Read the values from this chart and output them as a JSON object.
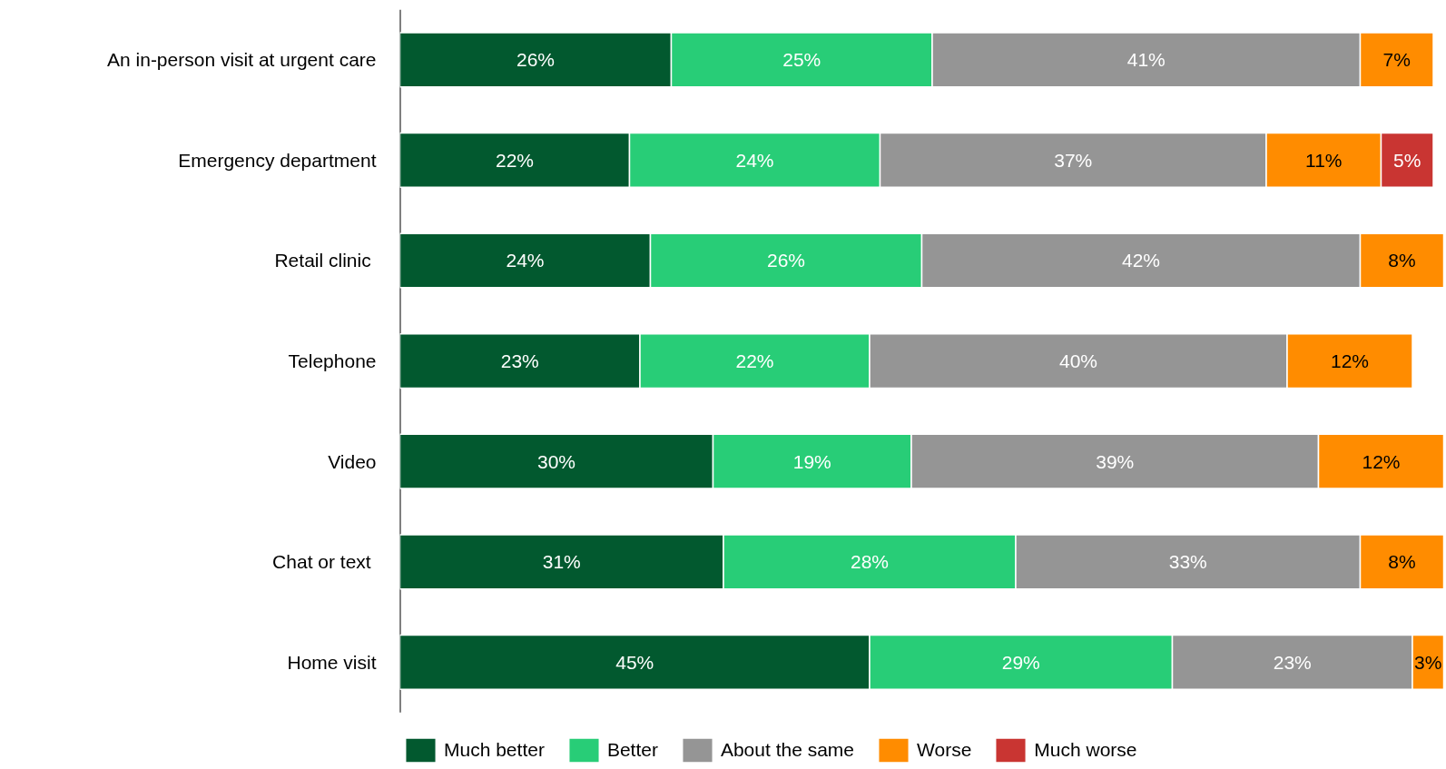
{
  "chart_data": {
    "type": "bar",
    "orientation": "horizontal",
    "stacked": true,
    "categories": [
      "An in-person visit at urgent care",
      "Emergency department",
      "Retail clinic ",
      "Telephone",
      "Video",
      "Chat or text ",
      "Home visit"
    ],
    "xlim": [
      0,
      100
    ],
    "tick_labels": "y",
    "grid": false,
    "legend": "bottom",
    "series": [
      {
        "name": "Much better",
        "color": "#02592f",
        "values": [
          26,
          22,
          24,
          23,
          30,
          31,
          45
        ],
        "value_labels": [
          "26%",
          "22%",
          "24%",
          "23%",
          "30%",
          "31%",
          "45%"
        ]
      },
      {
        "name": "Better",
        "color": "#28cd77",
        "values": [
          25,
          24,
          26,
          22,
          19,
          28,
          29
        ],
        "value_labels": [
          "25%",
          "24%",
          "26%",
          "22%",
          "19%",
          "28%",
          "29%"
        ]
      },
      {
        "name": "About the same",
        "color": "#959595",
        "values": [
          41,
          37,
          42,
          40,
          39,
          33,
          23
        ],
        "value_labels": [
          "41%",
          "37%",
          "42%",
          "40%",
          "39%",
          "33%",
          "23%"
        ]
      },
      {
        "name": "Worse",
        "color": "#ff8c00",
        "values": [
          7,
          11,
          8,
          12,
          12,
          8,
          3
        ],
        "value_labels": [
          "7%",
          "11%",
          "8%",
          "12%",
          "12%",
          "8%",
          "3%"
        ]
      },
      {
        "name": "Much worse",
        "color": "#c93532",
        "values": [
          null,
          5,
          null,
          null,
          null,
          null,
          null
        ],
        "value_labels": [
          null,
          "5%",
          null,
          null,
          null,
          null,
          null
        ]
      }
    ]
  }
}
